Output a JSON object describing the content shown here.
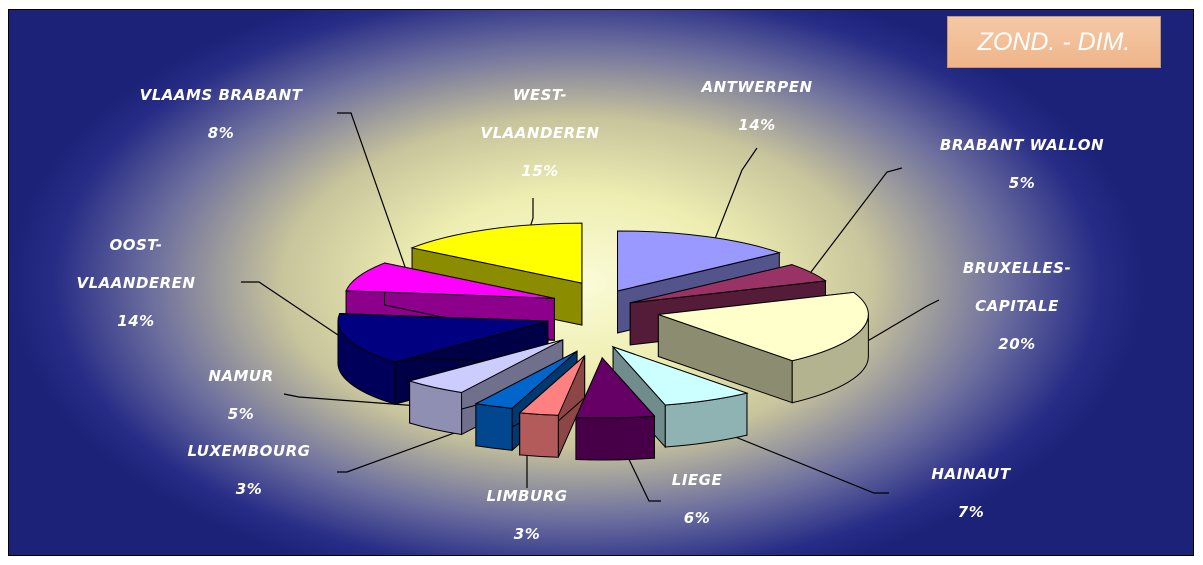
{
  "badge": {
    "text": "ZOND. - DIM."
  },
  "chart_data": {
    "type": "pie",
    "title": "",
    "slices": [
      {
        "label": "ANTWERPEN",
        "percent_label": "14%",
        "value": 14,
        "color": "#9999ff"
      },
      {
        "label": "BRABANT WALLON",
        "percent_label": "5%",
        "value": 5,
        "color": "#993366"
      },
      {
        "label": "BRUXELLES-CAPITALE",
        "percent_label": "20%",
        "value": 20,
        "color": "#ffffcc"
      },
      {
        "label": "HAINAUT",
        "percent_label": "7%",
        "value": 7,
        "color": "#ccffff"
      },
      {
        "label": "LIEGE",
        "percent_label": "6%",
        "value": 6,
        "color": "#660066"
      },
      {
        "label": "LIMBURG",
        "percent_label": "3%",
        "value": 3,
        "color": "#ff8080"
      },
      {
        "label": "LUXEMBOURG",
        "percent_label": "3%",
        "value": 3,
        "color": "#0066cc"
      },
      {
        "label": "NAMUR",
        "percent_label": "5%",
        "value": 5,
        "color": "#ccccff"
      },
      {
        "label": "OOST-VLAANDEREN",
        "percent_label": "14%",
        "value": 14,
        "color": "#000080"
      },
      {
        "label": "VLAAMS BRABANT",
        "percent_label": "8%",
        "value": 8,
        "color": "#ff00ff"
      },
      {
        "label": "WEST-VLAANDEREN",
        "percent_label": "15%",
        "value": 15,
        "color": "#ffff00"
      }
    ]
  }
}
